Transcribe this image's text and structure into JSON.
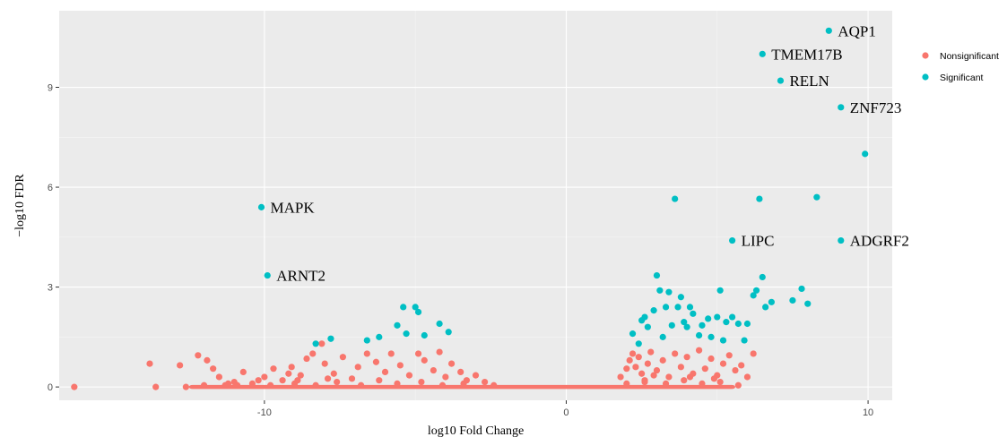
{
  "chart_data": {
    "type": "scatter",
    "xlabel": "log10 Fold Change",
    "ylabel": "−log10 FDR",
    "xlim": [
      -16.8,
      10.8
    ],
    "ylim": [
      -0.4,
      11.3
    ],
    "xticks": [
      -10,
      0,
      10
    ],
    "yticks": [
      0,
      3,
      6,
      9
    ],
    "grid": true,
    "legend_position": "right",
    "colors": {
      "Nonsignificant": "#F8766D",
      "Significant": "#00BFC4"
    },
    "series": [
      {
        "name": "Nonsignificant",
        "points": [
          [
            -16.3,
            0.0
          ],
          [
            -13.8,
            0.7
          ],
          [
            -13.6,
            0.0
          ],
          [
            -12.8,
            0.65
          ],
          [
            -12.6,
            0.0
          ],
          [
            -12.2,
            0.95
          ],
          [
            -11.9,
            0.8
          ],
          [
            -11.7,
            0.55
          ],
          [
            -11.5,
            0.3
          ],
          [
            -11.3,
            0.05
          ],
          [
            -11.0,
            0.15
          ],
          [
            -10.7,
            0.45
          ],
          [
            -10.4,
            0.1
          ],
          [
            -10.0,
            0.3
          ],
          [
            -9.7,
            0.55
          ],
          [
            -9.4,
            0.2
          ],
          [
            -9.1,
            0.6
          ],
          [
            -8.8,
            0.35
          ],
          [
            -8.6,
            0.85
          ],
          [
            -8.4,
            1.0
          ],
          [
            -8.1,
            1.3
          ],
          [
            -8.0,
            0.7
          ],
          [
            -7.7,
            0.4
          ],
          [
            -7.4,
            0.9
          ],
          [
            -7.1,
            0.25
          ],
          [
            -6.9,
            0.6
          ],
          [
            -6.6,
            1.0
          ],
          [
            -6.3,
            0.75
          ],
          [
            -6.0,
            0.45
          ],
          [
            -5.8,
            1.0
          ],
          [
            -5.5,
            0.65
          ],
          [
            -5.2,
            0.35
          ],
          [
            -4.9,
            1.0
          ],
          [
            -4.7,
            0.8
          ],
          [
            -4.4,
            0.5
          ],
          [
            -4.2,
            1.05
          ],
          [
            -4.0,
            0.3
          ],
          [
            -3.8,
            0.7
          ],
          [
            -3.5,
            0.45
          ],
          [
            -3.3,
            0.2
          ],
          [
            -3.0,
            0.35
          ],
          [
            -2.7,
            0.15
          ],
          [
            -9.8,
            0.05
          ],
          [
            -9.0,
            0.1
          ],
          [
            -8.3,
            0.05
          ],
          [
            -7.6,
            0.15
          ],
          [
            -6.8,
            0.05
          ],
          [
            -6.2,
            0.2
          ],
          [
            -5.6,
            0.1
          ],
          [
            -4.8,
            0.15
          ],
          [
            -4.1,
            0.05
          ],
          [
            -3.4,
            0.1
          ],
          [
            -2.4,
            0.05
          ],
          [
            -12.0,
            0.05
          ],
          [
            -11.2,
            0.1
          ],
          [
            -10.9,
            0.05
          ],
          [
            -10.2,
            0.2
          ],
          [
            -9.2,
            0.4
          ],
          [
            -8.9,
            0.2
          ],
          [
            -7.9,
            0.25
          ],
          [
            1.8,
            0.3
          ],
          [
            2.0,
            0.55
          ],
          [
            2.1,
            0.8
          ],
          [
            2.2,
            1.0
          ],
          [
            2.3,
            0.6
          ],
          [
            2.4,
            0.9
          ],
          [
            2.5,
            0.4
          ],
          [
            2.6,
            0.2
          ],
          [
            2.7,
            0.7
          ],
          [
            2.8,
            1.05
          ],
          [
            3.0,
            0.5
          ],
          [
            3.2,
            0.8
          ],
          [
            3.4,
            0.3
          ],
          [
            3.6,
            1.0
          ],
          [
            3.8,
            0.6
          ],
          [
            4.0,
            0.9
          ],
          [
            4.2,
            0.4
          ],
          [
            4.4,
            1.1
          ],
          [
            4.6,
            0.55
          ],
          [
            4.8,
            0.85
          ],
          [
            5.0,
            0.35
          ],
          [
            5.2,
            0.7
          ],
          [
            5.4,
            0.95
          ],
          [
            5.6,
            0.5
          ],
          [
            5.8,
            0.65
          ],
          [
            6.0,
            0.3
          ],
          [
            6.2,
            1.0
          ],
          [
            2.0,
            0.1
          ],
          [
            2.6,
            0.15
          ],
          [
            3.3,
            0.1
          ],
          [
            3.9,
            0.2
          ],
          [
            4.5,
            0.1
          ],
          [
            5.1,
            0.15
          ],
          [
            5.7,
            0.05
          ],
          [
            2.9,
            0.35
          ],
          [
            4.1,
            0.3
          ],
          [
            4.9,
            0.25
          ]
        ]
      },
      {
        "name": "Significant",
        "points": [
          [
            -10.1,
            5.4
          ],
          [
            -9.9,
            3.35
          ],
          [
            -8.3,
            1.3
          ],
          [
            -7.8,
            1.45
          ],
          [
            -6.6,
            1.4
          ],
          [
            -6.2,
            1.5
          ],
          [
            -5.6,
            1.85
          ],
          [
            -5.4,
            2.4
          ],
          [
            -5.3,
            1.6
          ],
          [
            -5.0,
            2.4
          ],
          [
            -4.9,
            2.25
          ],
          [
            -4.7,
            1.55
          ],
          [
            -4.2,
            1.9
          ],
          [
            -3.9,
            1.65
          ],
          [
            8.7,
            10.7
          ],
          [
            6.5,
            10.0
          ],
          [
            7.1,
            9.2
          ],
          [
            9.1,
            8.4
          ],
          [
            9.9,
            7.0
          ],
          [
            3.6,
            5.65
          ],
          [
            6.4,
            5.65
          ],
          [
            8.3,
            5.7
          ],
          [
            5.5,
            4.4
          ],
          [
            9.1,
            4.4
          ],
          [
            3.0,
            3.35
          ],
          [
            2.6,
            2.1
          ],
          [
            2.7,
            1.8
          ],
          [
            2.9,
            2.3
          ],
          [
            3.1,
            2.9
          ],
          [
            3.3,
            2.4
          ],
          [
            3.4,
            2.85
          ],
          [
            3.5,
            1.85
          ],
          [
            3.7,
            2.4
          ],
          [
            3.8,
            2.7
          ],
          [
            3.9,
            1.95
          ],
          [
            4.0,
            1.8
          ],
          [
            4.2,
            2.2
          ],
          [
            4.4,
            1.55
          ],
          [
            4.5,
            1.85
          ],
          [
            4.7,
            2.05
          ],
          [
            4.8,
            1.5
          ],
          [
            5.0,
            2.1
          ],
          [
            5.1,
            2.9
          ],
          [
            5.2,
            1.4
          ],
          [
            5.3,
            1.95
          ],
          [
            5.5,
            2.1
          ],
          [
            5.7,
            1.9
          ],
          [
            5.9,
            1.4
          ],
          [
            6.0,
            1.9
          ],
          [
            6.2,
            2.75
          ],
          [
            6.3,
            2.9
          ],
          [
            6.5,
            3.3
          ],
          [
            6.6,
            2.4
          ],
          [
            6.8,
            2.55
          ],
          [
            7.5,
            2.6
          ],
          [
            7.8,
            2.95
          ],
          [
            8.0,
            2.5
          ],
          [
            2.2,
            1.6
          ],
          [
            2.4,
            1.3
          ],
          [
            2.5,
            2.0
          ],
          [
            4.1,
            2.4
          ],
          [
            3.2,
            1.5
          ]
        ]
      }
    ],
    "annotations": [
      {
        "label": "AQP1",
        "x": 8.7,
        "y": 10.7
      },
      {
        "label": "TMEM17B",
        "x": 6.5,
        "y": 10.0
      },
      {
        "label": "RELN",
        "x": 7.1,
        "y": 9.2
      },
      {
        "label": "ZNF723",
        "x": 9.1,
        "y": 8.4
      },
      {
        "label": "MAPK",
        "x": -10.1,
        "y": 5.4
      },
      {
        "label": "LIPC",
        "x": 5.5,
        "y": 4.4
      },
      {
        "label": "ADGRF2",
        "x": 9.1,
        "y": 4.4
      },
      {
        "label": "ARNT2",
        "x": -9.9,
        "y": 3.35
      }
    ]
  }
}
